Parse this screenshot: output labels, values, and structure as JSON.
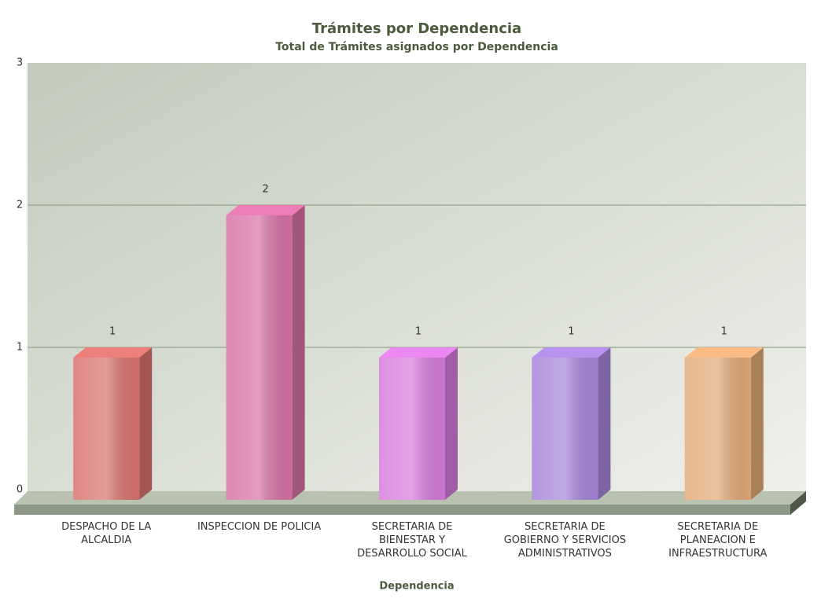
{
  "chart_data": {
    "type": "bar3d",
    "title": "Trámites por Dependencia",
    "subtitle": "Total de Trámites asignados por Dependencia",
    "x_label": "Dependencia",
    "categories": [
      "DESPACHO DE LA ALCALDIA",
      "INSPECCION DE POLICIA",
      "SECRETARIA DE BIENESTAR Y DESARROLLO SOCIAL",
      "SECRETARIA DE GOBIERNO Y SERVICIOS ADMINISTRATIVOS",
      "SECRETARIA DE PLANEACION E INFRAESTRUCTURA"
    ],
    "values": [
      1,
      2,
      1,
      1,
      1
    ],
    "colors": [
      "#d9736f",
      "#d872a6",
      "#d67cdc",
      "#a785d9",
      "#e3aa78"
    ],
    "ylim": [
      0,
      3
    ],
    "yticks": [
      0,
      1,
      2,
      3
    ],
    "grid": true
  }
}
